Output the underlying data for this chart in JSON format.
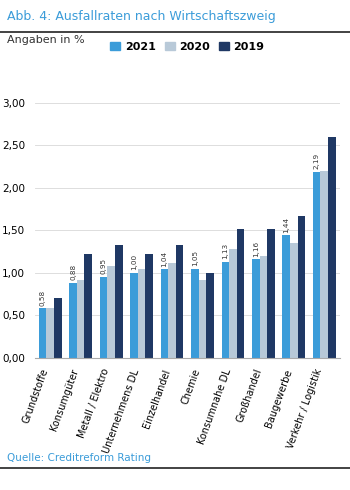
{
  "title": "Abb. 4: Ausfallraten nach Wirtschaftszweig",
  "subtitle": "Angaben in %",
  "source": "Quelle: Creditreform Rating",
  "categories": [
    "Grundstoffe",
    "Konsumgüter",
    "Metall / Elektro",
    "Unternehmens DL",
    "Einzelhandel",
    "Chemie",
    "Konsumnahe DL",
    "Großhandel",
    "Baugewerbe",
    "Verkehr / Logistik"
  ],
  "years": [
    "2021",
    "2020",
    "2019"
  ],
  "values": {
    "2021": [
      0.58,
      0.88,
      0.95,
      1.0,
      1.04,
      1.05,
      1.13,
      1.16,
      1.44,
      2.19
    ],
    "2020": [
      0.58,
      0.92,
      1.08,
      1.05,
      1.12,
      0.92,
      1.28,
      1.2,
      1.35,
      2.2
    ],
    "2019": [
      0.7,
      1.22,
      1.33,
      1.22,
      1.33,
      1.0,
      1.52,
      1.52,
      1.67,
      2.6
    ]
  },
  "bar_colors": {
    "2021": "#3b9cd9",
    "2020": "#b8c9d8",
    "2019": "#1f3864"
  },
  "ylim": [
    0,
    3.0
  ],
  "yticks": [
    0.0,
    0.5,
    1.0,
    1.5,
    2.0,
    2.5,
    3.0
  ],
  "ytick_labels": [
    "0,00",
    "0,50",
    "1,00",
    "1,50",
    "2,00",
    "2,50",
    "3,00"
  ],
  "title_color": "#3b9cd9",
  "separator_color": "#222222",
  "bottom_line_color": "#222222",
  "background_color": "#ffffff",
  "annotate_2021": [
    0.58,
    0.88,
    0.95,
    1.0,
    1.04,
    1.05,
    1.13,
    1.16,
    1.44,
    2.19
  ],
  "bar_width": 0.25
}
